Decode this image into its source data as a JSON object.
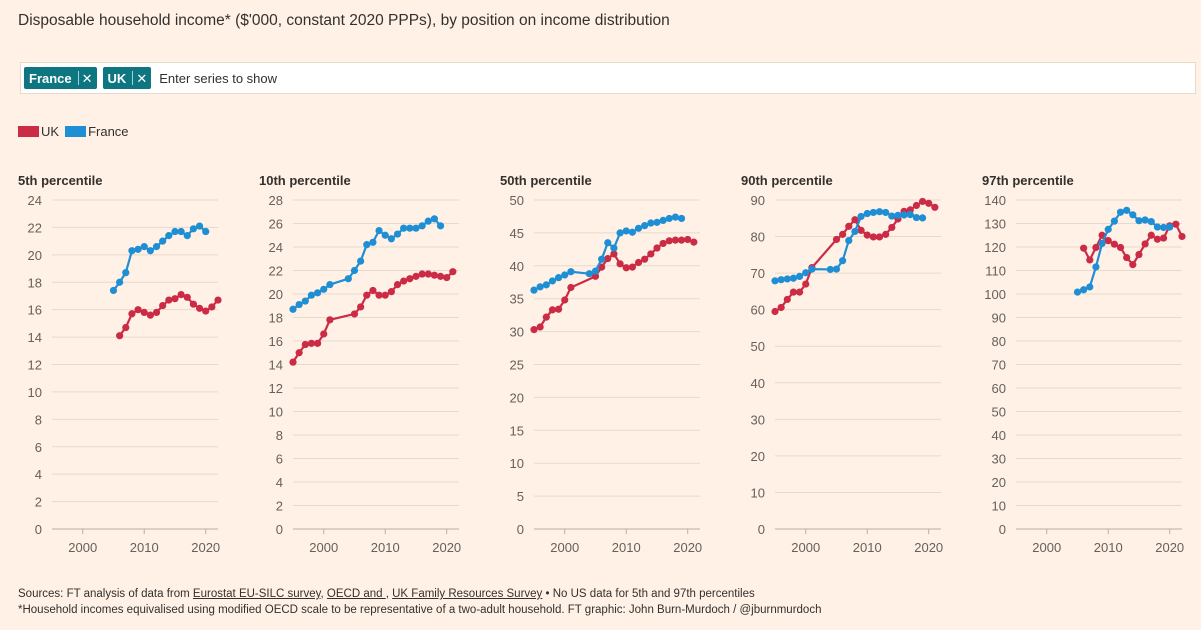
{
  "title": "Disposable household income* ($'000, constant 2020 PPPs), by position on income distribution",
  "series_picker": {
    "chips": [
      "France",
      "UK"
    ],
    "close_symbol": "✕",
    "placeholder": "Enter series to show"
  },
  "legend": [
    {
      "name": "UK",
      "color": "#cc2b45"
    },
    {
      "name": "France",
      "color": "#1e8fd4"
    }
  ],
  "colors": {
    "uk": "#cc2b45",
    "france": "#1e8fd4",
    "grid": "#e6d9ce",
    "axis_text": "#66605c"
  },
  "footer": {
    "sources_prefix": "Sources: FT analysis of data from ",
    "source1": "Eurostat EU-SILC survey",
    "sep1": ", ",
    "source2": "OECD and ",
    "sep2": ", ",
    "source3": "UK Family Resources Survey",
    "sources_suffix": " • No US data for 5th and 97th percentiles",
    "note": "*Household incomes equivalised using modified OECD scale to be representative of a two-adult household. FT graphic: John Burn-Murdoch / @jburnmurdoch"
  },
  "chart_data": [
    {
      "type": "line",
      "title": "5th percentile",
      "xlim": [
        1995,
        2022
      ],
      "xticks": [
        2000,
        2010,
        2020
      ],
      "ylim": [
        0,
        24
      ],
      "yticks": [
        0,
        2,
        4,
        6,
        8,
        10,
        12,
        14,
        16,
        18,
        20,
        22,
        24
      ],
      "series": [
        {
          "name": "UK",
          "points": [
            [
              2006,
              14.1
            ],
            [
              2007,
              14.7
            ],
            [
              2008,
              15.7
            ],
            [
              2009,
              16.0
            ],
            [
              2010,
              15.8
            ],
            [
              2011,
              15.6
            ],
            [
              2012,
              15.8
            ],
            [
              2013,
              16.3
            ],
            [
              2014,
              16.7
            ],
            [
              2015,
              16.8
            ],
            [
              2016,
              17.1
            ],
            [
              2017,
              16.9
            ],
            [
              2018,
              16.4
            ],
            [
              2019,
              16.1
            ],
            [
              2020,
              15.9
            ],
            [
              2021,
              16.2
            ],
            [
              2022,
              16.7
            ]
          ]
        },
        {
          "name": "France",
          "points": [
            [
              2005,
              17.4
            ],
            [
              2006,
              18.0
            ],
            [
              2007,
              18.7
            ],
            [
              2008,
              20.3
            ],
            [
              2009,
              20.4
            ],
            [
              2010,
              20.6
            ],
            [
              2011,
              20.3
            ],
            [
              2012,
              20.6
            ],
            [
              2013,
              21.0
            ],
            [
              2014,
              21.4
            ],
            [
              2015,
              21.7
            ],
            [
              2016,
              21.7
            ],
            [
              2017,
              21.4
            ],
            [
              2018,
              21.9
            ],
            [
              2019,
              22.1
            ],
            [
              2020,
              21.7
            ]
          ]
        }
      ]
    },
    {
      "type": "line",
      "title": "10th percentile",
      "xlim": [
        1995,
        2022
      ],
      "xticks": [
        2000,
        2010,
        2020
      ],
      "ylim": [
        0,
        28
      ],
      "yticks": [
        0,
        2,
        4,
        6,
        8,
        10,
        12,
        14,
        16,
        18,
        20,
        22,
        24,
        26,
        28
      ],
      "series": [
        {
          "name": "UK",
          "points": [
            [
              1995,
              14.2
            ],
            [
              1996,
              15.0
            ],
            [
              1997,
              15.7
            ],
            [
              1998,
              15.8
            ],
            [
              1999,
              15.8
            ],
            [
              2000,
              16.6
            ],
            [
              2001,
              17.8
            ],
            [
              2005,
              18.3
            ],
            [
              2006,
              18.9
            ],
            [
              2007,
              19.9
            ],
            [
              2008,
              20.3
            ],
            [
              2009,
              19.9
            ],
            [
              2010,
              19.9
            ],
            [
              2011,
              20.2
            ],
            [
              2012,
              20.8
            ],
            [
              2013,
              21.1
            ],
            [
              2014,
              21.3
            ],
            [
              2015,
              21.5
            ],
            [
              2016,
              21.7
            ],
            [
              2017,
              21.7
            ],
            [
              2018,
              21.6
            ],
            [
              2019,
              21.5
            ],
            [
              2020,
              21.4
            ],
            [
              2021,
              21.9
            ]
          ]
        },
        {
          "name": "France",
          "points": [
            [
              1995,
              18.7
            ],
            [
              1996,
              19.1
            ],
            [
              1997,
              19.4
            ],
            [
              1998,
              19.9
            ],
            [
              1999,
              20.1
            ],
            [
              2000,
              20.4
            ],
            [
              2001,
              20.8
            ],
            [
              2004,
              21.3
            ],
            [
              2005,
              22.0
            ],
            [
              2006,
              22.8
            ],
            [
              2007,
              24.2
            ],
            [
              2008,
              24.4
            ],
            [
              2009,
              25.4
            ],
            [
              2010,
              25.0
            ],
            [
              2011,
              24.7
            ],
            [
              2012,
              25.1
            ],
            [
              2013,
              25.6
            ],
            [
              2014,
              25.6
            ],
            [
              2015,
              25.6
            ],
            [
              2016,
              25.8
            ],
            [
              2017,
              26.2
            ],
            [
              2018,
              26.4
            ],
            [
              2019,
              25.8
            ]
          ]
        }
      ]
    },
    {
      "type": "line",
      "title": "50th percentile",
      "xlim": [
        1995,
        2022
      ],
      "xticks": [
        2000,
        2010,
        2020
      ],
      "ylim": [
        0,
        50
      ],
      "yticks": [
        0,
        5,
        10,
        15,
        20,
        25,
        30,
        35,
        40,
        45,
        50
      ],
      "series": [
        {
          "name": "UK",
          "points": [
            [
              1995,
              30.3
            ],
            [
              1996,
              30.7
            ],
            [
              1997,
              32.2
            ],
            [
              1998,
              33.3
            ],
            [
              1999,
              33.4
            ],
            [
              2000,
              34.8
            ],
            [
              2001,
              36.7
            ],
            [
              2005,
              38.4
            ],
            [
              2006,
              39.8
            ],
            [
              2007,
              41.1
            ],
            [
              2008,
              41.8
            ],
            [
              2009,
              40.3
            ],
            [
              2010,
              39.7
            ],
            [
              2011,
              39.8
            ],
            [
              2012,
              40.5
            ],
            [
              2013,
              41.0
            ],
            [
              2014,
              41.8
            ],
            [
              2015,
              42.7
            ],
            [
              2016,
              43.4
            ],
            [
              2017,
              43.8
            ],
            [
              2018,
              43.9
            ],
            [
              2019,
              43.9
            ],
            [
              2020,
              44.0
            ],
            [
              2021,
              43.6
            ]
          ]
        },
        {
          "name": "France",
          "points": [
            [
              1995,
              36.3
            ],
            [
              1996,
              36.8
            ],
            [
              1997,
              37.1
            ],
            [
              1998,
              37.7
            ],
            [
              1999,
              38.2
            ],
            [
              2000,
              38.6
            ],
            [
              2001,
              39.1
            ],
            [
              2004,
              38.8
            ],
            [
              2005,
              39.2
            ],
            [
              2006,
              41.0
            ],
            [
              2007,
              43.5
            ],
            [
              2008,
              42.7
            ],
            [
              2009,
              45.0
            ],
            [
              2010,
              45.3
            ],
            [
              2011,
              45.1
            ],
            [
              2012,
              45.7
            ],
            [
              2013,
              46.1
            ],
            [
              2014,
              46.5
            ],
            [
              2015,
              46.6
            ],
            [
              2016,
              46.9
            ],
            [
              2017,
              47.2
            ],
            [
              2018,
              47.4
            ],
            [
              2019,
              47.2
            ]
          ]
        }
      ]
    },
    {
      "type": "line",
      "title": "90th percentile",
      "xlim": [
        1995,
        2022
      ],
      "xticks": [
        2000,
        2010,
        2020
      ],
      "ylim": [
        0,
        90
      ],
      "yticks": [
        0,
        10,
        20,
        30,
        40,
        50,
        60,
        70,
        80,
        90
      ],
      "series": [
        {
          "name": "UK",
          "points": [
            [
              1995,
              59.5
            ],
            [
              1996,
              60.6
            ],
            [
              1997,
              62.8
            ],
            [
              1998,
              64.8
            ],
            [
              1999,
              64.8
            ],
            [
              2000,
              67.0
            ],
            [
              2001,
              71.5
            ],
            [
              2005,
              79.2
            ],
            [
              2006,
              80.6
            ],
            [
              2007,
              82.8
            ],
            [
              2008,
              84.6
            ],
            [
              2009,
              81.7
            ],
            [
              2010,
              80.4
            ],
            [
              2011,
              79.9
            ],
            [
              2012,
              79.9
            ],
            [
              2013,
              80.6
            ],
            [
              2014,
              82.5
            ],
            [
              2015,
              84.8
            ],
            [
              2016,
              86.9
            ],
            [
              2017,
              87.3
            ],
            [
              2018,
              88.5
            ],
            [
              2019,
              89.6
            ],
            [
              2020,
              89.1
            ],
            [
              2021,
              88.0
            ]
          ]
        },
        {
          "name": "France",
          "points": [
            [
              1995,
              67.9
            ],
            [
              1996,
              68.2
            ],
            [
              1997,
              68.4
            ],
            [
              1998,
              68.6
            ],
            [
              1999,
              69.1
            ],
            [
              2000,
              70.1
            ],
            [
              2001,
              71.1
            ],
            [
              2004,
              71.0
            ],
            [
              2005,
              71.1
            ],
            [
              2006,
              73.4
            ],
            [
              2007,
              78.9
            ],
            [
              2008,
              81.4
            ],
            [
              2009,
              85.5
            ],
            [
              2010,
              86.3
            ],
            [
              2011,
              86.6
            ],
            [
              2012,
              86.8
            ],
            [
              2013,
              86.6
            ],
            [
              2014,
              85.6
            ],
            [
              2015,
              85.8
            ],
            [
              2016,
              85.9
            ],
            [
              2017,
              86.0
            ],
            [
              2018,
              85.2
            ],
            [
              2019,
              85.1
            ]
          ]
        }
      ]
    },
    {
      "type": "line",
      "title": "97th percentile",
      "xlim": [
        1995,
        2022
      ],
      "xticks": [
        2000,
        2010,
        2020
      ],
      "ylim": [
        0,
        140
      ],
      "yticks": [
        0,
        10,
        20,
        30,
        40,
        50,
        60,
        70,
        80,
        90,
        100,
        110,
        120,
        130,
        140
      ],
      "series": [
        {
          "name": "UK",
          "points": [
            [
              2006,
              119.5
            ],
            [
              2007,
              114.5
            ],
            [
              2008,
              119.8
            ],
            [
              2009,
              125.0
            ],
            [
              2010,
              122.7
            ],
            [
              2011,
              121.2
            ],
            [
              2012,
              119.8
            ],
            [
              2013,
              115.5
            ],
            [
              2014,
              112.5
            ],
            [
              2015,
              116.8
            ],
            [
              2016,
              121.3
            ],
            [
              2017,
              125.0
            ],
            [
              2018,
              123.3
            ],
            [
              2019,
              123.8
            ],
            [
              2020,
              129.0
            ],
            [
              2021,
              129.7
            ],
            [
              2022,
              124.5
            ]
          ]
        },
        {
          "name": "France",
          "points": [
            [
              2005,
              100.8
            ],
            [
              2006,
              101.8
            ],
            [
              2007,
              103.0
            ],
            [
              2008,
              111.5
            ],
            [
              2009,
              121.5
            ],
            [
              2010,
              127.5
            ],
            [
              2011,
              131.0
            ],
            [
              2012,
              134.8
            ],
            [
              2013,
              135.6
            ],
            [
              2014,
              133.7
            ],
            [
              2015,
              131.2
            ],
            [
              2016,
              131.5
            ],
            [
              2017,
              130.8
            ],
            [
              2018,
              128.5
            ],
            [
              2019,
              128.3
            ],
            [
              2020,
              128.5
            ]
          ]
        }
      ]
    }
  ]
}
